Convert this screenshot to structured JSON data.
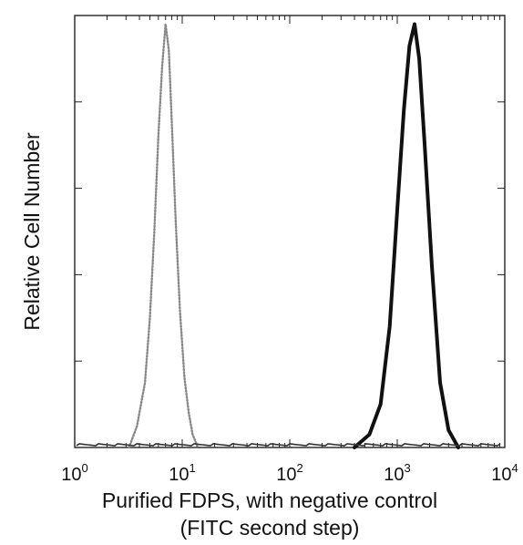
{
  "chart_data": {
    "type": "line",
    "title": "",
    "xlabel": [
      "Purified FDPS, with negative control",
      "(FITC second step)"
    ],
    "ylabel": "Relative Cell Number",
    "x_scale": "log",
    "xlim": [
      1,
      10000
    ],
    "ylim": [
      0,
      1
    ],
    "x_ticks": [
      {
        "base": "10",
        "exp": "0",
        "value": 1
      },
      {
        "base": "10",
        "exp": "1",
        "value": 10
      },
      {
        "base": "10",
        "exp": "2",
        "value": 100
      },
      {
        "base": "10",
        "exp": "3",
        "value": 1000
      },
      {
        "base": "10",
        "exp": "4",
        "value": 10000
      }
    ],
    "y_ticks": [
      0,
      0.2,
      0.4,
      0.6,
      0.8,
      1.0
    ],
    "grid": false,
    "legend": "none",
    "series": [
      {
        "style": "dotted-light",
        "color": "#888888",
        "x": [
          3.2,
          3.8,
          4.5,
          5.0,
          5.5,
          6.0,
          6.5,
          7.0,
          7.5,
          8.0,
          8.7,
          9.5,
          10.5,
          11.5,
          12.5,
          14.0
        ],
        "y": [
          0.0,
          0.05,
          0.15,
          0.3,
          0.5,
          0.72,
          0.88,
          0.98,
          0.92,
          0.75,
          0.52,
          0.32,
          0.16,
          0.08,
          0.03,
          0.0
        ]
      },
      {
        "style": "solid-dark",
        "color": "#111111",
        "x": [
          400,
          550,
          700,
          850,
          1000,
          1150,
          1300,
          1450,
          1600,
          1800,
          2100,
          2500,
          3000,
          3700
        ],
        "y": [
          0.0,
          0.03,
          0.1,
          0.28,
          0.55,
          0.78,
          0.93,
          0.98,
          0.9,
          0.7,
          0.42,
          0.15,
          0.04,
          0.0
        ]
      }
    ]
  }
}
